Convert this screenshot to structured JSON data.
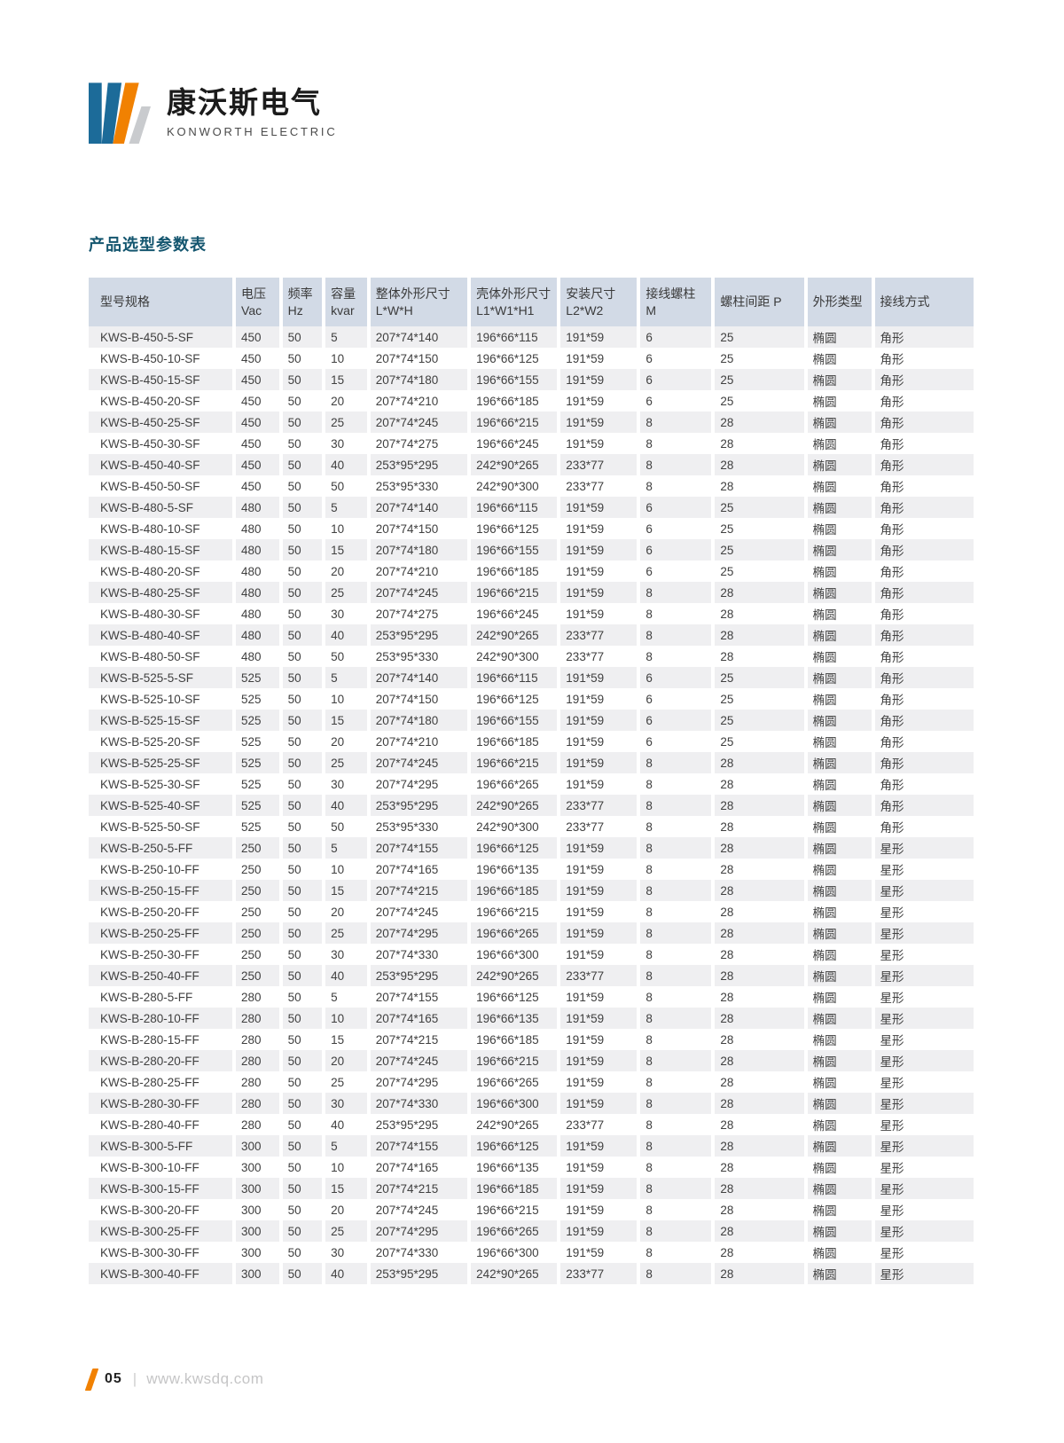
{
  "logo": {
    "company_cn": "康沃斯电气",
    "company_en": "KONWORTH ELECTRIC",
    "colors": {
      "blue": "#1c6b99",
      "orange": "#f18101",
      "gray": "#c9cbce"
    }
  },
  "section_title": "产品选型参数表",
  "colors": {
    "title_teal": "#14566f",
    "header_bg": "#d2dae6",
    "row_stripe": "#efeff1",
    "accent_orange": "#f18101"
  },
  "table": {
    "columns": [
      {
        "key": "model",
        "line1": "型号规格",
        "line2": ""
      },
      {
        "key": "voltage",
        "line1": "电压",
        "line2": "Vac"
      },
      {
        "key": "freq",
        "line1": "频率",
        "line2": "Hz"
      },
      {
        "key": "capacity",
        "line1": "容量",
        "line2": "kvar"
      },
      {
        "key": "overall",
        "line1": "整体外形尺寸",
        "line2": "L*W*H"
      },
      {
        "key": "shell",
        "line1": "壳体外形尺寸",
        "line2": "L1*W1*H1"
      },
      {
        "key": "install",
        "line1": "安装尺寸",
        "line2": "L2*W2"
      },
      {
        "key": "stud",
        "line1": "接线螺柱",
        "line2": "M"
      },
      {
        "key": "spacing",
        "line1": "螺柱间距 P",
        "line2": ""
      },
      {
        "key": "shape",
        "line1": "外形类型",
        "line2": ""
      },
      {
        "key": "wiring",
        "line1": "接线方式",
        "line2": ""
      }
    ],
    "rows": [
      [
        "KWS-B-450-5-SF",
        "450",
        "50",
        "5",
        "207*74*140",
        "196*66*115",
        "191*59",
        "6",
        "25",
        "椭圆",
        "角形"
      ],
      [
        "KWS-B-450-10-SF",
        "450",
        "50",
        "10",
        "207*74*150",
        "196*66*125",
        "191*59",
        "6",
        "25",
        "椭圆",
        "角形"
      ],
      [
        "KWS-B-450-15-SF",
        "450",
        "50",
        "15",
        "207*74*180",
        "196*66*155",
        "191*59",
        "6",
        "25",
        "椭圆",
        "角形"
      ],
      [
        "KWS-B-450-20-SF",
        "450",
        "50",
        "20",
        "207*74*210",
        "196*66*185",
        "191*59",
        "6",
        "25",
        "椭圆",
        "角形"
      ],
      [
        "KWS-B-450-25-SF",
        "450",
        "50",
        "25",
        "207*74*245",
        "196*66*215",
        "191*59",
        "8",
        "28",
        "椭圆",
        "角形"
      ],
      [
        "KWS-B-450-30-SF",
        "450",
        "50",
        "30",
        "207*74*275",
        "196*66*245",
        "191*59",
        "8",
        "28",
        "椭圆",
        "角形"
      ],
      [
        "KWS-B-450-40-SF",
        "450",
        "50",
        "40",
        "253*95*295",
        "242*90*265",
        "233*77",
        "8",
        "28",
        "椭圆",
        "角形"
      ],
      [
        "KWS-B-450-50-SF",
        "450",
        "50",
        "50",
        "253*95*330",
        "242*90*300",
        "233*77",
        "8",
        "28",
        "椭圆",
        "角形"
      ],
      [
        "KWS-B-480-5-SF",
        "480",
        "50",
        "5",
        "207*74*140",
        "196*66*115",
        "191*59",
        "6",
        "25",
        "椭圆",
        "角形"
      ],
      [
        "KWS-B-480-10-SF",
        "480",
        "50",
        "10",
        "207*74*150",
        "196*66*125",
        "191*59",
        "6",
        "25",
        "椭圆",
        "角形"
      ],
      [
        "KWS-B-480-15-SF",
        "480",
        "50",
        "15",
        "207*74*180",
        "196*66*155",
        "191*59",
        "6",
        "25",
        "椭圆",
        "角形"
      ],
      [
        "KWS-B-480-20-SF",
        "480",
        "50",
        "20",
        "207*74*210",
        "196*66*185",
        "191*59",
        "6",
        "25",
        "椭圆",
        "角形"
      ],
      [
        "KWS-B-480-25-SF",
        "480",
        "50",
        "25",
        "207*74*245",
        "196*66*215",
        "191*59",
        "8",
        "28",
        "椭圆",
        "角形"
      ],
      [
        "KWS-B-480-30-SF",
        "480",
        "50",
        "30",
        "207*74*275",
        "196*66*245",
        "191*59",
        "8",
        "28",
        "椭圆",
        "角形"
      ],
      [
        "KWS-B-480-40-SF",
        "480",
        "50",
        "40",
        "253*95*295",
        "242*90*265",
        "233*77",
        "8",
        "28",
        "椭圆",
        "角形"
      ],
      [
        "KWS-B-480-50-SF",
        "480",
        "50",
        "50",
        "253*95*330",
        "242*90*300",
        "233*77",
        "8",
        "28",
        "椭圆",
        "角形"
      ],
      [
        "KWS-B-525-5-SF",
        "525",
        "50",
        "5",
        "207*74*140",
        "196*66*115",
        "191*59",
        "6",
        "25",
        "椭圆",
        "角形"
      ],
      [
        "KWS-B-525-10-SF",
        "525",
        "50",
        "10",
        "207*74*150",
        "196*66*125",
        "191*59",
        "6",
        "25",
        "椭圆",
        "角形"
      ],
      [
        "KWS-B-525-15-SF",
        "525",
        "50",
        "15",
        "207*74*180",
        "196*66*155",
        "191*59",
        "6",
        "25",
        "椭圆",
        "角形"
      ],
      [
        "KWS-B-525-20-SF",
        "525",
        "50",
        "20",
        "207*74*210",
        "196*66*185",
        "191*59",
        "6",
        "25",
        "椭圆",
        "角形"
      ],
      [
        "KWS-B-525-25-SF",
        "525",
        "50",
        "25",
        "207*74*245",
        "196*66*215",
        "191*59",
        "8",
        "28",
        "椭圆",
        "角形"
      ],
      [
        "KWS-B-525-30-SF",
        "525",
        "50",
        "30",
        "207*74*295",
        "196*66*265",
        "191*59",
        "8",
        "28",
        "椭圆",
        "角形"
      ],
      [
        "KWS-B-525-40-SF",
        "525",
        "50",
        "40",
        "253*95*295",
        "242*90*265",
        "233*77",
        "8",
        "28",
        "椭圆",
        "角形"
      ],
      [
        "KWS-B-525-50-SF",
        "525",
        "50",
        "50",
        "253*95*330",
        "242*90*300",
        "233*77",
        "8",
        "28",
        "椭圆",
        "角形"
      ],
      [
        "KWS-B-250-5-FF",
        "250",
        "50",
        "5",
        "207*74*155",
        "196*66*125",
        "191*59",
        "8",
        "28",
        "椭圆",
        "星形"
      ],
      [
        "KWS-B-250-10-FF",
        "250",
        "50",
        "10",
        "207*74*165",
        "196*66*135",
        "191*59",
        "8",
        "28",
        "椭圆",
        "星形"
      ],
      [
        "KWS-B-250-15-FF",
        "250",
        "50",
        "15",
        "207*74*215",
        "196*66*185",
        "191*59",
        "8",
        "28",
        "椭圆",
        "星形"
      ],
      [
        "KWS-B-250-20-FF",
        "250",
        "50",
        "20",
        "207*74*245",
        "196*66*215",
        "191*59",
        "8",
        "28",
        "椭圆",
        "星形"
      ],
      [
        "KWS-B-250-25-FF",
        "250",
        "50",
        "25",
        "207*74*295",
        "196*66*265",
        "191*59",
        "8",
        "28",
        "椭圆",
        "星形"
      ],
      [
        "KWS-B-250-30-FF",
        "250",
        "50",
        "30",
        "207*74*330",
        "196*66*300",
        "191*59",
        "8",
        "28",
        "椭圆",
        "星形"
      ],
      [
        "KWS-B-250-40-FF",
        "250",
        "50",
        "40",
        "253*95*295",
        "242*90*265",
        "233*77",
        "8",
        "28",
        "椭圆",
        "星形"
      ],
      [
        "KWS-B-280-5-FF",
        "280",
        "50",
        "5",
        "207*74*155",
        "196*66*125",
        "191*59",
        "8",
        "28",
        "椭圆",
        "星形"
      ],
      [
        "KWS-B-280-10-FF",
        "280",
        "50",
        "10",
        "207*74*165",
        "196*66*135",
        "191*59",
        "8",
        "28",
        "椭圆",
        "星形"
      ],
      [
        "KWS-B-280-15-FF",
        "280",
        "50",
        "15",
        "207*74*215",
        "196*66*185",
        "191*59",
        "8",
        "28",
        "椭圆",
        "星形"
      ],
      [
        "KWS-B-280-20-FF",
        "280",
        "50",
        "20",
        "207*74*245",
        "196*66*215",
        "191*59",
        "8",
        "28",
        "椭圆",
        "星形"
      ],
      [
        "KWS-B-280-25-FF",
        "280",
        "50",
        "25",
        "207*74*295",
        "196*66*265",
        "191*59",
        "8",
        "28",
        "椭圆",
        "星形"
      ],
      [
        "KWS-B-280-30-FF",
        "280",
        "50",
        "30",
        "207*74*330",
        "196*66*300",
        "191*59",
        "8",
        "28",
        "椭圆",
        "星形"
      ],
      [
        "KWS-B-280-40-FF",
        "280",
        "50",
        "40",
        "253*95*295",
        "242*90*265",
        "233*77",
        "8",
        "28",
        "椭圆",
        "星形"
      ],
      [
        "KWS-B-300-5-FF",
        "300",
        "50",
        "5",
        "207*74*155",
        "196*66*125",
        "191*59",
        "8",
        "28",
        "椭圆",
        "星形"
      ],
      [
        "KWS-B-300-10-FF",
        "300",
        "50",
        "10",
        "207*74*165",
        "196*66*135",
        "191*59",
        "8",
        "28",
        "椭圆",
        "星形"
      ],
      [
        "KWS-B-300-15-FF",
        "300",
        "50",
        "15",
        "207*74*215",
        "196*66*185",
        "191*59",
        "8",
        "28",
        "椭圆",
        "星形"
      ],
      [
        "KWS-B-300-20-FF",
        "300",
        "50",
        "20",
        "207*74*245",
        "196*66*215",
        "191*59",
        "8",
        "28",
        "椭圆",
        "星形"
      ],
      [
        "KWS-B-300-25-FF",
        "300",
        "50",
        "25",
        "207*74*295",
        "196*66*265",
        "191*59",
        "8",
        "28",
        "椭圆",
        "星形"
      ],
      [
        "KWS-B-300-30-FF",
        "300",
        "50",
        "30",
        "207*74*330",
        "196*66*300",
        "191*59",
        "8",
        "28",
        "椭圆",
        "星形"
      ],
      [
        "KWS-B-300-40-FF",
        "300",
        "50",
        "40",
        "253*95*295",
        "242*90*265",
        "233*77",
        "8",
        "28",
        "椭圆",
        "星形"
      ]
    ]
  },
  "footer": {
    "page_number": "05",
    "website": "www.kwsdq.com"
  }
}
